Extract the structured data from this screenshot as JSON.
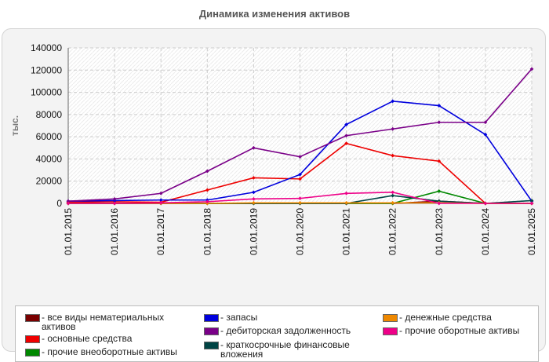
{
  "chart_data": {
    "type": "line",
    "title": "Динамика изменения активов",
    "ylabel": "тыс.",
    "xlabel": "",
    "ylim": [
      0,
      140000
    ],
    "yticks": [
      "0",
      "20000",
      "40000",
      "60000",
      "80000",
      "100000",
      "120000",
      "140000"
    ],
    "categories": [
      "01.01.2015",
      "01.01.2016",
      "01.01.2017",
      "01.01.2018",
      "01.01.2019",
      "01.01.2020",
      "01.01.2021",
      "01.01.2022",
      "01.01.2023",
      "01.01.2024",
      "01.01.2025"
    ],
    "grid": true,
    "legend_position": "bottom",
    "series": [
      {
        "name": "все виды нематериальных активов",
        "color": "#7a0000",
        "values": [
          0,
          0,
          0,
          0,
          0,
          0,
          0,
          0,
          2000,
          0,
          0
        ]
      },
      {
        "name": "основные средства",
        "color": "#ee0000",
        "values": [
          1000,
          1500,
          1000,
          12000,
          23000,
          22000,
          54000,
          43000,
          38000,
          0,
          0
        ]
      },
      {
        "name": "прочие внеоборотные активы",
        "color": "#008800",
        "values": [
          0,
          0,
          0,
          0,
          0,
          0,
          0,
          0,
          11000,
          0,
          0
        ]
      },
      {
        "name": "запасы",
        "color": "#0000dd",
        "values": [
          2000,
          2500,
          3000,
          3000,
          10000,
          26000,
          71000,
          92000,
          88000,
          62000,
          2000
        ]
      },
      {
        "name": "дебиторская задолженность",
        "color": "#7a0088",
        "values": [
          2000,
          4000,
          9000,
          29000,
          50000,
          42000,
          61000,
          67000,
          73000,
          73000,
          121000
        ]
      },
      {
        "name": "краткосрочные финансовые вложения",
        "color": "#004444",
        "values": [
          0,
          0,
          0,
          0,
          0,
          0,
          0,
          7000,
          2000,
          0,
          2500
        ]
      },
      {
        "name": "денежные средства",
        "color": "#ee8800",
        "values": [
          0,
          0,
          0,
          0,
          500,
          500,
          500,
          500,
          500,
          0,
          0
        ]
      },
      {
        "name": "прочие оборотные активы",
        "color": "#ee0088",
        "values": [
          0,
          0,
          500,
          1500,
          4000,
          4500,
          9000,
          10000,
          0,
          0,
          0
        ]
      }
    ]
  }
}
